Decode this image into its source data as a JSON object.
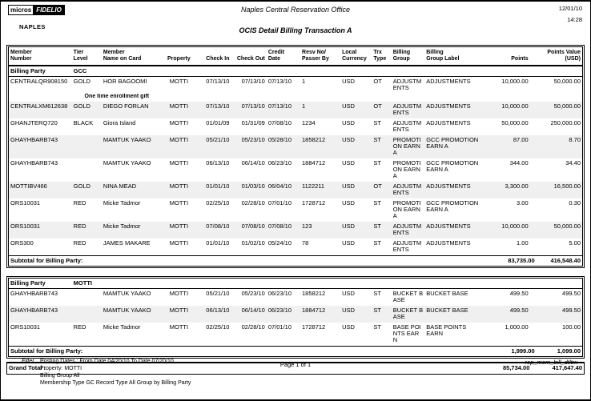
{
  "page": {
    "logo": {
      "micros": "micros",
      "fidelio": "FIDELIO",
      "location": "NAPLES"
    },
    "header": {
      "office_title": "Naples Central Reservation Office",
      "report_title": "OCIS Detail Billing Transaction A",
      "date": "12/01/10",
      "time": "14:28"
    }
  },
  "table": {
    "columns": [
      {
        "key": "member_number",
        "label": "Member\nNumber"
      },
      {
        "key": "tier_level",
        "label": "Tier\nLevel"
      },
      {
        "key": "member_name",
        "label": "Member\nName on Card"
      },
      {
        "key": "property",
        "label": "Property"
      },
      {
        "key": "check_in",
        "label": "Check In"
      },
      {
        "key": "check_out",
        "label": "Check Out"
      },
      {
        "key": "credit_date",
        "label": "Credit\nDate"
      },
      {
        "key": "resv_no",
        "label": "Resv No/\nPasser By"
      },
      {
        "key": "local_currency",
        "label": "Local\nCurrency"
      },
      {
        "key": "trx_type",
        "label": "Trx\nType"
      },
      {
        "key": "billing_group",
        "label": "Billing\nGroup"
      },
      {
        "key": "billing_group_label",
        "label": "Billing\nGroup Label"
      },
      {
        "key": "points",
        "label": "Points"
      },
      {
        "key": "points_value",
        "label": "Points Value\n(USD)"
      }
    ],
    "billing_party_label": "Billing Party",
    "subtotal_label": "Subtotal for Billing Party:",
    "groups": [
      {
        "billing_party": "GCC",
        "rows": [
          {
            "member_number": "CENTRALQR908150",
            "tier_level": "GOLD",
            "member_name": "HOR BAGOOMI",
            "note": "One time enrollment gift",
            "property": "MOTTI",
            "check_in": "07/13/10",
            "check_out": "07/13/10",
            "credit_date": "07/13/10",
            "resv_no": "1",
            "local_currency": "USD",
            "trx_type": "OT",
            "billing_group": "ADJUSTMENTS",
            "billing_group_label": "ADJUSTMENTS",
            "points": "10,000.00",
            "points_value": "50,000.00"
          },
          {
            "member_number": "CENTRALXM612638",
            "tier_level": "GOLD",
            "member_name": "DIEGO FORLAN",
            "property": "MOTTI",
            "check_in": "07/13/10",
            "check_out": "07/13/10",
            "credit_date": "07/13/10",
            "resv_no": "1",
            "local_currency": "USD",
            "trx_type": "OT",
            "billing_group": "ADJUSTMENTS",
            "billing_group_label": "ADJUSTMENTS",
            "points": "10,000.00",
            "points_value": "50,000.00"
          },
          {
            "member_number": "GHANJTERQ720",
            "tier_level": "BLACK",
            "member_name": "Giora Island",
            "property": "MOTTI",
            "check_in": "01/01/09",
            "check_out": "01/31/09",
            "credit_date": "07/08/10",
            "resv_no": "1234",
            "local_currency": "USD",
            "trx_type": "ST",
            "billing_group": "ADJUSTMENTS",
            "billing_group_label": "ADJUSTMENTS",
            "points": "50,000.00",
            "points_value": "250,000.00"
          },
          {
            "member_number": "GHAYHBARB743",
            "tier_level": "",
            "member_name": "MAMTUK YAAKO",
            "property": "MOTTI",
            "check_in": "05/21/10",
            "check_out": "05/23/10",
            "credit_date": "05/28/10",
            "resv_no": "1858212",
            "local_currency": "USD",
            "trx_type": "ST",
            "billing_group": "PROMOTION EARN A",
            "billing_group_label": "GCC PROMOTION EARN A",
            "points": "87.00",
            "points_value": "8.70"
          },
          {
            "member_number": "GHAYHBARB743",
            "tier_level": "",
            "member_name": "MAMTUK YAAKO",
            "property": "MOTTI",
            "check_in": "06/13/10",
            "check_out": "06/14/10",
            "credit_date": "06/23/10",
            "resv_no": "1884712",
            "local_currency": "USD",
            "trx_type": "ST",
            "billing_group": "PROMOTION EARN A",
            "billing_group_label": "GCC PROMOTION EARN A",
            "points": "344.00",
            "points_value": "34.40"
          },
          {
            "member_number": "MOTTIBV466",
            "tier_level": "GOLD",
            "member_name": "NINA MEAD",
            "property": "MOTTI",
            "check_in": "01/01/10",
            "check_out": "01/03/10",
            "credit_date": "06/04/10",
            "resv_no": "1122211",
            "local_currency": "USD",
            "trx_type": "OT",
            "billing_group": "ADJUSTMENTS",
            "billing_group_label": "ADJUSTMENTS",
            "points": "3,300.00",
            "points_value": "16,500.00"
          },
          {
            "member_number": "ORS10031",
            "tier_level": "RED",
            "member_name": "Micke Tadmor",
            "property": "MOTTI",
            "check_in": "02/25/10",
            "check_out": "02/28/10",
            "credit_date": "07/01/10",
            "resv_no": "1728712",
            "local_currency": "USD",
            "trx_type": "ST",
            "billing_group": "PROMOTION EARN A",
            "billing_group_label": "GCC PROMOTION EARN A",
            "points": "3.00",
            "points_value": "0.30"
          },
          {
            "member_number": "ORS10031",
            "tier_level": "RED",
            "member_name": "Micke Tadmor",
            "property": "MOTTI",
            "check_in": "07/08/10",
            "check_out": "07/08/10",
            "credit_date": "07/08/10",
            "resv_no": "123",
            "local_currency": "USD",
            "trx_type": "ST",
            "billing_group": "ADJUSTMENTS",
            "billing_group_label": "ADJUSTMENTS",
            "points": "10,000.00",
            "points_value": "50,000.00"
          },
          {
            "member_number": "ORS300",
            "tier_level": "RED",
            "member_name": "JAMES MAKARE",
            "property": "MOTTI",
            "check_in": "01/01/10",
            "check_out": "01/02/10",
            "credit_date": "05/24/10",
            "resv_no": "78",
            "local_currency": "USD",
            "trx_type": "ST",
            "billing_group": "ADJUSTMENTS",
            "billing_group_label": "ADJUSTMENTS",
            "points": "1.00",
            "points_value": "5.00"
          }
        ],
        "subtotal_points": "83,735.00",
        "subtotal_value": "416,548.40"
      },
      {
        "billing_party": "MOTTI",
        "rows": [
          {
            "member_number": "GHAYHBARB743",
            "tier_level": "",
            "member_name": "MAMTUK YAAKO",
            "property": "MOTTI",
            "check_in": "05/21/10",
            "check_out": "05/23/10",
            "credit_date": "06/23/10",
            "resv_no": "1858212",
            "local_currency": "USD",
            "trx_type": "ST",
            "billing_group": "BUCKET BASE",
            "billing_group_label": "BUCKET BASE",
            "points": "499.50",
            "points_value": "499.50"
          },
          {
            "member_number": "GHAYHBARB743",
            "tier_level": "",
            "member_name": "MAMTUK YAAKO",
            "property": "MOTTI",
            "check_in": "06/13/10",
            "check_out": "06/14/10",
            "credit_date": "06/23/10",
            "resv_no": "1884712",
            "local_currency": "USD",
            "trx_type": "ST",
            "billing_group": "BUCKET BASE",
            "billing_group_label": "BUCKET BASE",
            "points": "499.50",
            "points_value": "499.50"
          },
          {
            "member_number": "ORS10031",
            "tier_level": "RED",
            "member_name": "Micke Tadmor",
            "property": "MOTTI",
            "check_in": "02/25/10",
            "check_out": "02/28/10",
            "credit_date": "07/01/10",
            "resv_no": "1728712",
            "local_currency": "USD",
            "trx_type": "ST",
            "billing_group": "BASE POINTS EARN",
            "billing_group_label": "BASE POINTS EARN",
            "points": "1,000.00",
            "points_value": "100.00"
          }
        ],
        "subtotal_points": "1,999.00",
        "subtotal_value": "1,099.00"
      }
    ],
    "grand_total": {
      "label": "Grand Total :",
      "points": "85,734.00",
      "value": "417,647.40"
    }
  },
  "footer": {
    "filter_label": "Filter",
    "filter_lines": [
      "Posting Dates :   From Date 04/20/10   To Date 07/20/10",
      "Property:   MOTTI",
      "Billing Group All",
      "Membership Type GC   Record Type All   Group by Billing Party"
    ],
    "page_number": "Page 1 of 1",
    "report_id": "rep_mem_bill_dtltrx"
  }
}
